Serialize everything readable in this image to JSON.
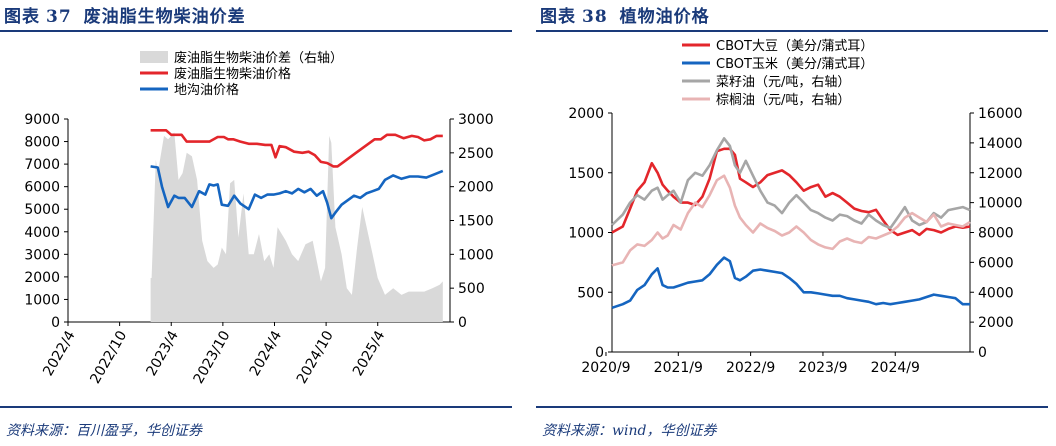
{
  "charts": [
    {
      "figure_label": "图表",
      "figure_number": "37",
      "figure_title": "废油脂生物柴油价差",
      "source": "资料来源：百川盈孚，华创证券",
      "colors": {
        "spread": "#d9d9d9",
        "biodiesel": "#e3262b",
        "drainage_oil": "#1565c0"
      }
    },
    {
      "figure_label": "图表",
      "figure_number": "38",
      "figure_title": "植物油价格",
      "source": "资料来源：wind，华创证券",
      "colors": {
        "soybean": "#e3262b",
        "corn": "#1565c0",
        "rapeseed": "#a6a6a6",
        "palm": "#e8b4b4"
      }
    }
  ],
  "chart_data": [
    {
      "type": "line",
      "title": "废油脂生物柴油价差",
      "x_ticks": [
        "2022/4",
        "2022/10",
        "2023/4",
        "2023/10",
        "2024/4",
        "2024/10",
        "2025/4"
      ],
      "x_range": [
        2022.25,
        2025.95
      ],
      "y_left": {
        "min": 0,
        "max": 9000,
        "ticks": [
          "0",
          "1000",
          "2000",
          "3000",
          "4000",
          "5000",
          "6000",
          "7000",
          "8000",
          "9000"
        ]
      },
      "y_right": {
        "min": 0,
        "max": 3000,
        "ticks": [
          "0",
          "500",
          "1000",
          "1500",
          "2000",
          "2500",
          "3000"
        ]
      },
      "legend": [
        "废油脂生物柴油价差（右轴）",
        "废油脂生物柴油价格",
        "地沟油价格"
      ],
      "series": [
        {
          "name": "废油脂生物柴油价差（右轴）",
          "type": "area",
          "axis": "right",
          "x": [
            2023.05,
            2023.06,
            2023.1,
            2023.12,
            2023.18,
            2023.22,
            2023.28,
            2023.32,
            2023.36,
            2023.4,
            2023.45,
            2023.5,
            2023.55,
            2023.6,
            2023.66,
            2023.7,
            2023.74,
            2023.78,
            2023.82,
            2023.86,
            2023.9,
            2023.95,
            2024.0,
            2024.05,
            2024.1,
            2024.15,
            2024.2,
            2024.24,
            2024.28,
            2024.32,
            2024.36,
            2024.42,
            2024.48,
            2024.55,
            2024.62,
            2024.7,
            2024.74,
            2024.78,
            2024.8,
            2024.84,
            2024.9,
            2024.95,
            2025.0,
            2025.05,
            2025.1,
            2025.15,
            2025.2,
            2025.25,
            2025.32,
            2025.4,
            2025.48,
            2025.55,
            2025.62,
            2025.7,
            2025.78,
            2025.85,
            2025.88
          ],
          "values": [
            650,
            650,
            2400,
            2200,
            2750,
            2700,
            2800,
            2100,
            2200,
            2500,
            2450,
            2100,
            1200,
            900,
            800,
            850,
            1100,
            1000,
            2050,
            2100,
            1250,
            1900,
            1000,
            1000,
            1300,
            900,
            1000,
            800,
            1400,
            1300,
            1200,
            1000,
            900,
            1150,
            1200,
            600,
            800,
            2750,
            2650,
            1400,
            1000,
            500,
            400,
            1100,
            1700,
            1350,
            1000,
            650,
            400,
            500,
            400,
            450,
            450,
            450,
            500,
            550,
            600
          ]
        },
        {
          "name": "废油脂生物柴油价格",
          "type": "line",
          "axis": "left",
          "x": [
            2023.05,
            2023.12,
            2023.2,
            2023.25,
            2023.35,
            2023.4,
            2023.48,
            2023.55,
            2023.62,
            2023.7,
            2023.76,
            2023.8,
            2023.85,
            2023.92,
            2024.0,
            2024.08,
            2024.16,
            2024.22,
            2024.26,
            2024.3,
            2024.36,
            2024.44,
            2024.52,
            2024.58,
            2024.64,
            2024.7,
            2024.76,
            2024.82,
            2024.86,
            2024.92,
            2024.98,
            2025.04,
            2025.1,
            2025.16,
            2025.22,
            2025.28,
            2025.34,
            2025.42,
            2025.5,
            2025.58,
            2025.64,
            2025.7,
            2025.76,
            2025.82,
            2025.88
          ],
          "values": [
            8500,
            8500,
            8500,
            8300,
            8300,
            8000,
            8000,
            8000,
            8000,
            8200,
            8200,
            8100,
            8100,
            8000,
            7900,
            7900,
            7850,
            7850,
            7300,
            7800,
            7750,
            7550,
            7500,
            7550,
            7400,
            7100,
            7050,
            6900,
            6900,
            7100,
            7300,
            7500,
            7700,
            7900,
            8100,
            8100,
            8300,
            8300,
            8150,
            8250,
            8200,
            8050,
            8100,
            8250,
            8250
          ]
        },
        {
          "name": "地沟油价格",
          "type": "line",
          "axis": "left",
          "x": [
            2023.05,
            2023.12,
            2023.16,
            2023.22,
            2023.28,
            2023.32,
            2023.38,
            2023.45,
            2023.52,
            2023.58,
            2023.62,
            2023.66,
            2023.7,
            2023.74,
            2023.8,
            2023.86,
            2023.92,
            2024.0,
            2024.06,
            2024.12,
            2024.18,
            2024.24,
            2024.3,
            2024.36,
            2024.42,
            2024.48,
            2024.54,
            2024.6,
            2024.66,
            2024.72,
            2024.76,
            2024.8,
            2024.84,
            2024.9,
            2024.96,
            2025.02,
            2025.08,
            2025.14,
            2025.2,
            2025.26,
            2025.32,
            2025.4,
            2025.48,
            2025.56,
            2025.64,
            2025.72,
            2025.8,
            2025.88
          ],
          "values": [
            6900,
            6850,
            6000,
            5100,
            5600,
            5500,
            5500,
            5100,
            5800,
            5650,
            6100,
            6050,
            6100,
            5200,
            5150,
            5600,
            5250,
            5000,
            5650,
            5500,
            5650,
            5650,
            5700,
            5800,
            5700,
            5900,
            5750,
            5900,
            5600,
            5800,
            5300,
            4600,
            4850,
            5200,
            5400,
            5600,
            5500,
            5700,
            5800,
            5900,
            6300,
            6500,
            6350,
            6450,
            6450,
            6400,
            6550,
            6700
          ]
        }
      ]
    },
    {
      "type": "line",
      "title": "植物油价格",
      "x_ticks": [
        "2020/9",
        "2021/9",
        "2022/9",
        "2023/9",
        "2024/9"
      ],
      "x_range": [
        2020.75,
        2025.7
      ],
      "y_left": {
        "min": 0,
        "max": 2000,
        "ticks": [
          "0",
          "500",
          "1000",
          "1500",
          "2000"
        ]
      },
      "y_right": {
        "min": 0,
        "max": 16000,
        "ticks": [
          "0",
          "2000",
          "4000",
          "6000",
          "8000",
          "10000",
          "12000",
          "14000",
          "16000"
        ]
      },
      "legend": [
        "CBOT大豆（美分/蒲式耳）",
        "CBOT玉米（美分/蒲式耳）",
        "菜籽油（元/吨，右轴）",
        "棕榈油（元/吨，右轴）"
      ],
      "series": [
        {
          "name": "CBOT大豆（美分/蒲式耳）",
          "axis": "left",
          "x": [
            2020.75,
            2020.9,
            2021.0,
            2021.1,
            2021.2,
            2021.3,
            2021.38,
            2021.45,
            2021.52,
            2021.6,
            2021.7,
            2021.8,
            2021.9,
            2022.0,
            2022.1,
            2022.2,
            2022.3,
            2022.38,
            2022.45,
            2022.52,
            2022.6,
            2022.7,
            2022.8,
            2022.9,
            2023.0,
            2023.1,
            2023.2,
            2023.3,
            2023.4,
            2023.5,
            2023.6,
            2023.7,
            2023.8,
            2023.9,
            2024.0,
            2024.1,
            2024.2,
            2024.3,
            2024.4,
            2024.5,
            2024.6,
            2024.7,
            2024.8,
            2024.9,
            2025.0,
            2025.1,
            2025.2,
            2025.3,
            2025.4,
            2025.5,
            2025.6,
            2025.7
          ],
          "values": [
            1000,
            1050,
            1200,
            1350,
            1420,
            1580,
            1500,
            1400,
            1350,
            1300,
            1250,
            1250,
            1230,
            1300,
            1450,
            1680,
            1700,
            1700,
            1650,
            1450,
            1420,
            1380,
            1420,
            1480,
            1500,
            1520,
            1480,
            1420,
            1350,
            1380,
            1400,
            1300,
            1330,
            1300,
            1250,
            1200,
            1180,
            1170,
            1190,
            1100,
            1020,
            980,
            1000,
            1020,
            980,
            1030,
            1020,
            1000,
            1030,
            1050,
            1040,
            1050
          ]
        },
        {
          "name": "CBOT玉米（美分/蒲式耳）",
          "axis": "left",
          "x": [
            2020.75,
            2020.9,
            2021.0,
            2021.1,
            2021.2,
            2021.3,
            2021.38,
            2021.45,
            2021.52,
            2021.6,
            2021.7,
            2021.8,
            2021.9,
            2022.0,
            2022.1,
            2022.2,
            2022.3,
            2022.38,
            2022.45,
            2022.52,
            2022.6,
            2022.7,
            2022.8,
            2022.9,
            2023.0,
            2023.1,
            2023.2,
            2023.3,
            2023.4,
            2023.5,
            2023.6,
            2023.7,
            2023.8,
            2023.9,
            2024.0,
            2024.1,
            2024.2,
            2024.3,
            2024.4,
            2024.5,
            2024.6,
            2024.7,
            2024.8,
            2024.9,
            2025.0,
            2025.1,
            2025.2,
            2025.3,
            2025.4,
            2025.5,
            2025.6,
            2025.7
          ],
          "values": [
            370,
            400,
            430,
            520,
            560,
            650,
            700,
            560,
            540,
            540,
            560,
            580,
            590,
            600,
            650,
            730,
            790,
            760,
            620,
            600,
            630,
            680,
            690,
            680,
            670,
            660,
            620,
            570,
            500,
            500,
            490,
            480,
            470,
            470,
            450,
            440,
            430,
            420,
            400,
            410,
            400,
            410,
            420,
            430,
            440,
            460,
            480,
            470,
            460,
            450,
            400,
            400
          ]
        },
        {
          "name": "菜籽油（元/吨，右轴）",
          "axis": "right",
          "x": [
            2020.75,
            2020.9,
            2021.0,
            2021.1,
            2021.2,
            2021.3,
            2021.38,
            2021.45,
            2021.52,
            2021.6,
            2021.7,
            2021.8,
            2021.9,
            2022.0,
            2022.1,
            2022.2,
            2022.3,
            2022.38,
            2022.45,
            2022.52,
            2022.6,
            2022.7,
            2022.8,
            2022.9,
            2023.0,
            2023.1,
            2023.2,
            2023.3,
            2023.4,
            2023.5,
            2023.6,
            2023.7,
            2023.8,
            2023.9,
            2024.0,
            2024.1,
            2024.2,
            2024.3,
            2024.4,
            2024.5,
            2024.6,
            2024.7,
            2024.8,
            2024.9,
            2025.0,
            2025.1,
            2025.2,
            2025.3,
            2025.4,
            2025.5,
            2025.6,
            2025.7
          ],
          "values": [
            8500,
            9200,
            10000,
            10500,
            10200,
            10800,
            11000,
            10200,
            10500,
            10800,
            10000,
            11500,
            12000,
            11800,
            12500,
            13500,
            14300,
            13800,
            12500,
            12000,
            12800,
            11800,
            10800,
            10000,
            9800,
            9300,
            10000,
            10500,
            10000,
            9500,
            9300,
            9000,
            8800,
            9200,
            9100,
            8800,
            8600,
            9200,
            8800,
            8500,
            8300,
            9000,
            9700,
            8800,
            8500,
            8700,
            9300,
            9000,
            9500,
            9600,
            9700,
            9500
          ]
        },
        {
          "name": "棕榈油（元/吨，右轴）",
          "axis": "right",
          "x": [
            2020.75,
            2020.9,
            2021.0,
            2021.1,
            2021.2,
            2021.3,
            2021.38,
            2021.45,
            2021.52,
            2021.6,
            2021.7,
            2021.8,
            2021.9,
            2022.0,
            2022.1,
            2022.2,
            2022.3,
            2022.38,
            2022.45,
            2022.52,
            2022.6,
            2022.7,
            2022.8,
            2022.9,
            2023.0,
            2023.1,
            2023.2,
            2023.3,
            2023.4,
            2023.5,
            2023.6,
            2023.7,
            2023.8,
            2023.9,
            2024.0,
            2024.1,
            2024.2,
            2024.3,
            2024.4,
            2024.5,
            2024.6,
            2024.7,
            2024.8,
            2024.9,
            2025.0,
            2025.1,
            2025.2,
            2025.3,
            2025.4,
            2025.5,
            2025.6,
            2025.7
          ],
          "values": [
            5800,
            6000,
            6800,
            7200,
            7100,
            7500,
            8000,
            7600,
            7800,
            8500,
            8200,
            9300,
            10000,
            9700,
            10500,
            11500,
            11800,
            11000,
            9800,
            9000,
            8500,
            8000,
            8600,
            8300,
            8100,
            7800,
            8000,
            8400,
            8000,
            7500,
            7200,
            7000,
            6900,
            7400,
            7600,
            7400,
            7300,
            7700,
            7600,
            7800,
            8000,
            8400,
            9000,
            9300,
            9000,
            8700,
            9200,
            8400,
            8600,
            8500,
            8400,
            8700
          ]
        }
      ]
    }
  ]
}
